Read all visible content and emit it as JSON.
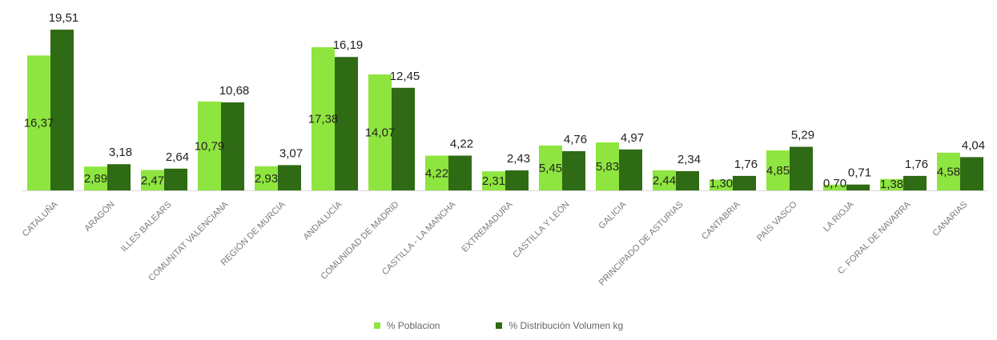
{
  "chart_data": {
    "type": "bar",
    "categories": [
      "CATALUÑA",
      "ARAGÓN",
      "ILLES BALEARS",
      "COMUNITAT VALENCIANA",
      "REGIÓN DE MURCIA",
      "ANDALUCÍA",
      "COMUNIDAD DE MADRID",
      "CASTILLA - LA MANCHA",
      "EXTREMADURA",
      "CASTILLA Y LEÓN",
      "GALICIA",
      "PRINCIPADO DE ASTURIAS",
      "CANTABRIA",
      "PAÍS VASCO",
      "LA RIOJA",
      "C. FORAL DE NAVARRA",
      "CANARIAS"
    ],
    "series": [
      {
        "name": "% Poblacion",
        "color": "#8ee53f",
        "values": [
          16.37,
          2.89,
          2.47,
          10.79,
          2.93,
          17.38,
          14.07,
          4.22,
          2.31,
          5.45,
          5.83,
          2.44,
          1.3,
          4.85,
          0.7,
          1.38,
          4.58
        ],
        "labels": [
          "16,37",
          "2,89",
          "2,47",
          "10,79",
          "2,93",
          "17,38",
          "14,07",
          "4,22",
          "2,31",
          "5,45",
          "5,83",
          "2,44",
          "1,30",
          "4,85",
          "0,70",
          "1,38",
          "4,58"
        ]
      },
      {
        "name": "% Distribución Volumen kg",
        "color": "#2f6a14",
        "values": [
          19.51,
          3.18,
          2.64,
          10.68,
          3.07,
          16.19,
          12.45,
          4.22,
          2.43,
          4.76,
          4.97,
          2.34,
          1.76,
          5.29,
          0.71,
          1.76,
          4.04
        ],
        "labels": [
          "19,51",
          "3,18",
          "2,64",
          "10,68",
          "3,07",
          "16,19",
          "12,45",
          "4,22",
          "2,43",
          "4,76",
          "4,97",
          "2,34",
          "1,76",
          "5,29",
          "0,71",
          "1,76",
          "4,04"
        ]
      }
    ],
    "ylim": [
      0,
      20
    ],
    "legend_position": "bottom",
    "grid": false
  }
}
